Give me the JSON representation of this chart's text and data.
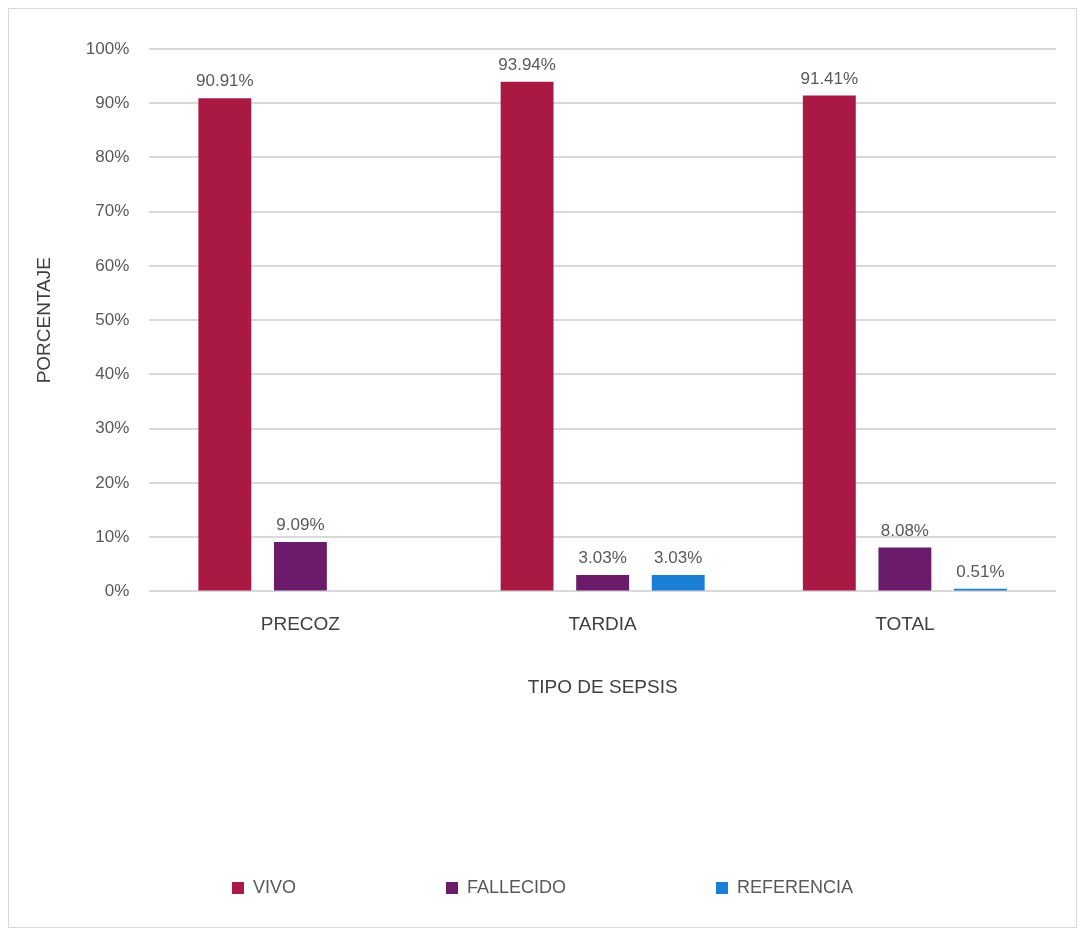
{
  "chart_data": {
    "type": "bar",
    "xlabel": "TIPO DE SEPSIS",
    "ylabel": "PORCENTAJE",
    "categories": [
      "PRECOZ",
      "TARDIA",
      "TOTAL"
    ],
    "series": [
      {
        "name": "VIVO",
        "color": "#a91944",
        "values": [
          90.91,
          93.94,
          91.41
        ],
        "value_labels": [
          "90.91%",
          "93.94%",
          "91.41%"
        ]
      },
      {
        "name": "FALLECIDO",
        "color": "#6a1b6a",
        "values": [
          9.09,
          3.03,
          8.08
        ],
        "value_labels": [
          "9.09%",
          "3.03%",
          "8.08%"
        ]
      },
      {
        "name": "REFERENCIA",
        "color": "#1a7fd4",
        "values": [
          null,
          3.03,
          0.51
        ],
        "value_labels": [
          null,
          "3.03%",
          "0.51%"
        ]
      }
    ],
    "ylim": [
      0,
      100
    ],
    "yticks": [
      {
        "value": 0,
        "label": "0%"
      },
      {
        "value": 10,
        "label": "10%"
      },
      {
        "value": 20,
        "label": "20%"
      },
      {
        "value": 30,
        "label": "30%"
      },
      {
        "value": 40,
        "label": "40%"
      },
      {
        "value": 50,
        "label": "50%"
      },
      {
        "value": 60,
        "label": "60%"
      },
      {
        "value": 70,
        "label": "70%"
      },
      {
        "value": 80,
        "label": "80%"
      },
      {
        "value": 90,
        "label": "90%"
      },
      {
        "value": 100,
        "label": "100%"
      }
    ],
    "grid": "y",
    "legend": "bottom"
  }
}
